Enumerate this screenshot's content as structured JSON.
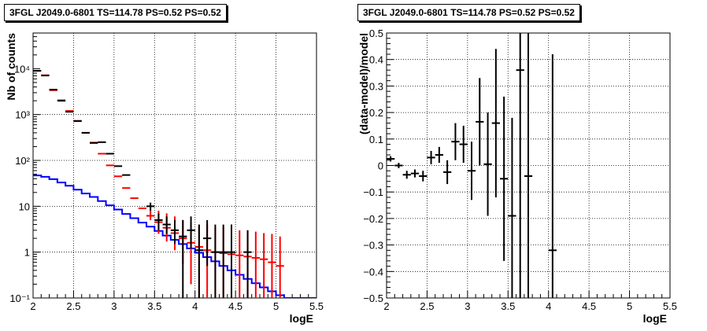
{
  "chart_data": [
    {
      "type": "scatter",
      "title": "3FGL J2049.0-6801 TS=114.78 PS=0.52 PS=0.52",
      "xlabel": "logE",
      "ylabel": "Nb of counts",
      "xlim": [
        2,
        5.5
      ],
      "ylim": [
        0.1,
        60000
      ],
      "yscale": "log",
      "grid": true,
      "x_ticks": [
        2,
        2.5,
        3,
        3.5,
        4,
        4.5,
        5,
        5.5
      ],
      "x_tick_labels": [
        "2",
        "2.5",
        "3",
        "3.5",
        "4",
        "4.5",
        "5",
        "5.5"
      ],
      "y_ticks": [
        0.1,
        1,
        10,
        100,
        1000,
        10000
      ],
      "y_tick_labels": [
        "10⁻¹",
        "1",
        "10",
        "10²",
        "10³",
        "10⁴"
      ],
      "series": [
        {
          "color": "#0000ff",
          "style": "step",
          "x": [
            2.0,
            2.1,
            2.2,
            2.3,
            2.4,
            2.5,
            2.6,
            2.7,
            2.8,
            2.9,
            3.0,
            3.1,
            3.2,
            3.3,
            3.4,
            3.5,
            3.6,
            3.7,
            3.8,
            3.9,
            4.0,
            4.1,
            4.2,
            4.3,
            4.4,
            4.5,
            4.6,
            4.7,
            4.8,
            4.9,
            5.0,
            5.1,
            5.2,
            5.3,
            5.4
          ],
          "values": [
            47,
            44,
            39,
            33,
            28,
            23,
            19,
            16,
            13,
            10.5,
            8.5,
            6.8,
            5.5,
            4.4,
            3.6,
            2.9,
            2.3,
            1.85,
            1.5,
            1.2,
            0.97,
            0.78,
            0.63,
            0.5,
            0.4,
            0.32,
            0.26,
            0.21,
            0.17,
            0.14,
            0.115,
            0.1,
            0.1,
            0.1,
            0.1
          ]
        },
        {
          "color": "#ff0000",
          "style": "errorbars",
          "x": [
            2.05,
            2.15,
            2.25,
            2.35,
            2.45,
            2.55,
            2.65,
            2.75,
            2.85,
            2.95,
            3.05,
            3.15,
            3.25,
            3.35,
            3.45,
            3.55,
            3.65,
            3.75,
            3.85,
            3.95,
            4.05,
            4.15,
            4.25,
            4.35,
            4.45,
            4.55,
            4.65,
            4.75,
            4.85,
            4.95,
            5.05
          ],
          "values": [
            9000,
            7200,
            3400,
            2050,
            1200,
            730,
            400,
            245,
            140,
            78,
            45,
            25,
            15,
            9,
            6.2,
            4.5,
            3.4,
            2.6,
            2.0,
            1.6,
            1.3,
            1.1,
            1.0,
            0.95,
            0.9,
            0.85,
            0.8,
            0.75,
            0.7,
            0.6,
            0.5
          ],
          "low": [
            9000,
            7200,
            3400,
            2050,
            1200,
            730,
            400,
            245,
            140,
            78,
            45,
            25,
            15,
            9,
            5,
            2.5,
            1.7,
            1.1,
            0.55,
            0.2,
            0.1,
            0.1,
            0.1,
            0.1,
            0.1,
            0.1,
            0.1,
            0.1,
            0.1,
            0.1,
            0.1
          ],
          "high": [
            9000,
            7200,
            3400,
            2050,
            1200,
            730,
            400,
            245,
            140,
            78,
            45,
            25,
            15,
            9,
            8,
            8,
            7,
            6,
            5,
            4.5,
            4,
            4,
            3.5,
            3.5,
            3.2,
            3,
            3,
            2.8,
            2.6,
            2.5,
            2.2
          ]
        },
        {
          "color": "#000000",
          "style": "errorbars",
          "x": [
            2.05,
            2.15,
            2.25,
            2.35,
            2.45,
            2.55,
            2.65,
            2.75,
            2.85,
            2.95,
            3.05,
            3.15,
            3.45,
            3.55,
            3.65,
            3.75,
            3.85,
            3.95,
            4.05,
            4.15,
            4.25,
            4.35,
            4.45,
            4.65
          ],
          "values": [
            9000,
            7100,
            3500,
            2000,
            1150,
            720,
            400,
            240,
            250,
            140,
            75,
            48,
            10,
            5,
            4,
            3,
            2.2,
            3,
            1.1,
            2,
            1,
            1,
            1,
            1
          ],
          "low": [
            9000,
            7100,
            3500,
            2000,
            1150,
            720,
            400,
            240,
            250,
            140,
            75,
            48,
            8,
            3,
            2.5,
            1.5,
            0.1,
            1.2,
            0.1,
            0.5,
            0.1,
            0.1,
            0.1,
            0.1
          ],
          "high": [
            9000,
            7100,
            3500,
            2000,
            1150,
            720,
            400,
            240,
            250,
            140,
            75,
            48,
            12,
            7,
            6,
            5,
            5,
            6,
            4,
            5,
            4,
            4,
            4,
            3
          ]
        }
      ]
    },
    {
      "type": "scatter",
      "title": "3FGL J2049.0-6801 TS=114.78 PS=0.52 PS=0.52",
      "xlabel": "logE",
      "ylabel": "(data-model)/model",
      "xlim": [
        2,
        5.5
      ],
      "ylim": [
        -0.5,
        0.5
      ],
      "grid": true,
      "x_ticks": [
        2,
        2.5,
        3,
        3.5,
        4,
        4.5,
        5,
        5.5
      ],
      "x_tick_labels": [
        "2",
        "2.5",
        "3",
        "3.5",
        "4",
        "4.5",
        "5",
        "5.5"
      ],
      "y_ticks": [
        -0.5,
        -0.4,
        -0.3,
        -0.2,
        -0.1,
        0,
        0.1,
        0.2,
        0.3,
        0.4,
        0.5
      ],
      "y_tick_labels": [
        "−0.5",
        "−0.4",
        "−0.3",
        "−0.2",
        "−0.1",
        "0",
        "0.1",
        "0.2",
        "0.3",
        "0.4",
        "0.5"
      ],
      "series": [
        {
          "color": "#000000",
          "style": "errorbars",
          "x": [
            2.05,
            2.15,
            2.25,
            2.35,
            2.45,
            2.55,
            2.65,
            2.75,
            2.85,
            2.95,
            3.05,
            3.15,
            3.25,
            3.35,
            3.45,
            3.55,
            3.65,
            3.75,
            4.05
          ],
          "values": [
            0.025,
            0.0,
            -0.035,
            -0.03,
            -0.04,
            0.03,
            0.04,
            -0.025,
            0.09,
            0.08,
            -0.02,
            0.165,
            0.005,
            0.16,
            -0.05,
            -0.19,
            0.36,
            -0.04,
            -0.32
          ],
          "low": [
            0.015,
            -0.01,
            -0.05,
            -0.045,
            -0.06,
            0.005,
            0.01,
            -0.07,
            0.02,
            0.01,
            -0.13,
            0.0,
            -0.19,
            -0.12,
            -0.36,
            -0.5,
            -0.5,
            -0.5,
            -0.5
          ],
          "high": [
            0.035,
            0.01,
            -0.02,
            -0.015,
            -0.02,
            0.055,
            0.07,
            0.02,
            0.16,
            0.15,
            0.09,
            0.33,
            0.2,
            0.44,
            0.26,
            0.18,
            0.5,
            0.5,
            0.42
          ]
        }
      ]
    }
  ]
}
